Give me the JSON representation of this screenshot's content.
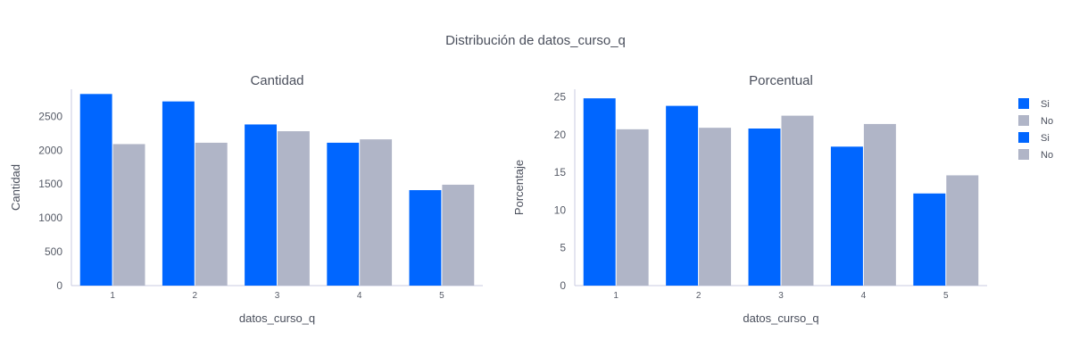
{
  "title": "Distribución de datos_curso_q",
  "colors": {
    "si": "#0066ff",
    "no": "#b0b5c7",
    "axis": "#c9cbe0",
    "text": "#4a4f5c"
  },
  "legend": [
    {
      "name": "Si",
      "color": "#0066ff"
    },
    {
      "name": "No",
      "color": "#b0b5c7"
    },
    {
      "name": "Si",
      "color": "#0066ff"
    },
    {
      "name": "No",
      "color": "#b0b5c7"
    }
  ],
  "chart_data": [
    {
      "type": "bar",
      "title": "Cantidad",
      "xlabel": "datos_curso_q",
      "ylabel": "Cantidad",
      "categories": [
        "1",
        "2",
        "3",
        "4",
        "5"
      ],
      "ylim": [
        0,
        2900
      ],
      "yticks": [
        0,
        500,
        1000,
        1500,
        2000,
        2500
      ],
      "series": [
        {
          "name": "Si",
          "values": [
            2830,
            2720,
            2380,
            2110,
            1410
          ]
        },
        {
          "name": "No",
          "values": [
            2090,
            2110,
            2280,
            2160,
            1490
          ]
        }
      ]
    },
    {
      "type": "bar",
      "title": "Porcentual",
      "xlabel": "datos_curso_q",
      "ylabel": "Porcentaje",
      "categories": [
        "1",
        "2",
        "3",
        "4",
        "5"
      ],
      "ylim": [
        0,
        26
      ],
      "yticks": [
        0,
        5,
        10,
        15,
        20,
        25
      ],
      "series": [
        {
          "name": "Si",
          "values": [
            24.8,
            23.8,
            20.8,
            18.4,
            12.2
          ]
        },
        {
          "name": "No",
          "values": [
            20.7,
            20.9,
            22.5,
            21.4,
            14.6
          ]
        }
      ]
    }
  ]
}
